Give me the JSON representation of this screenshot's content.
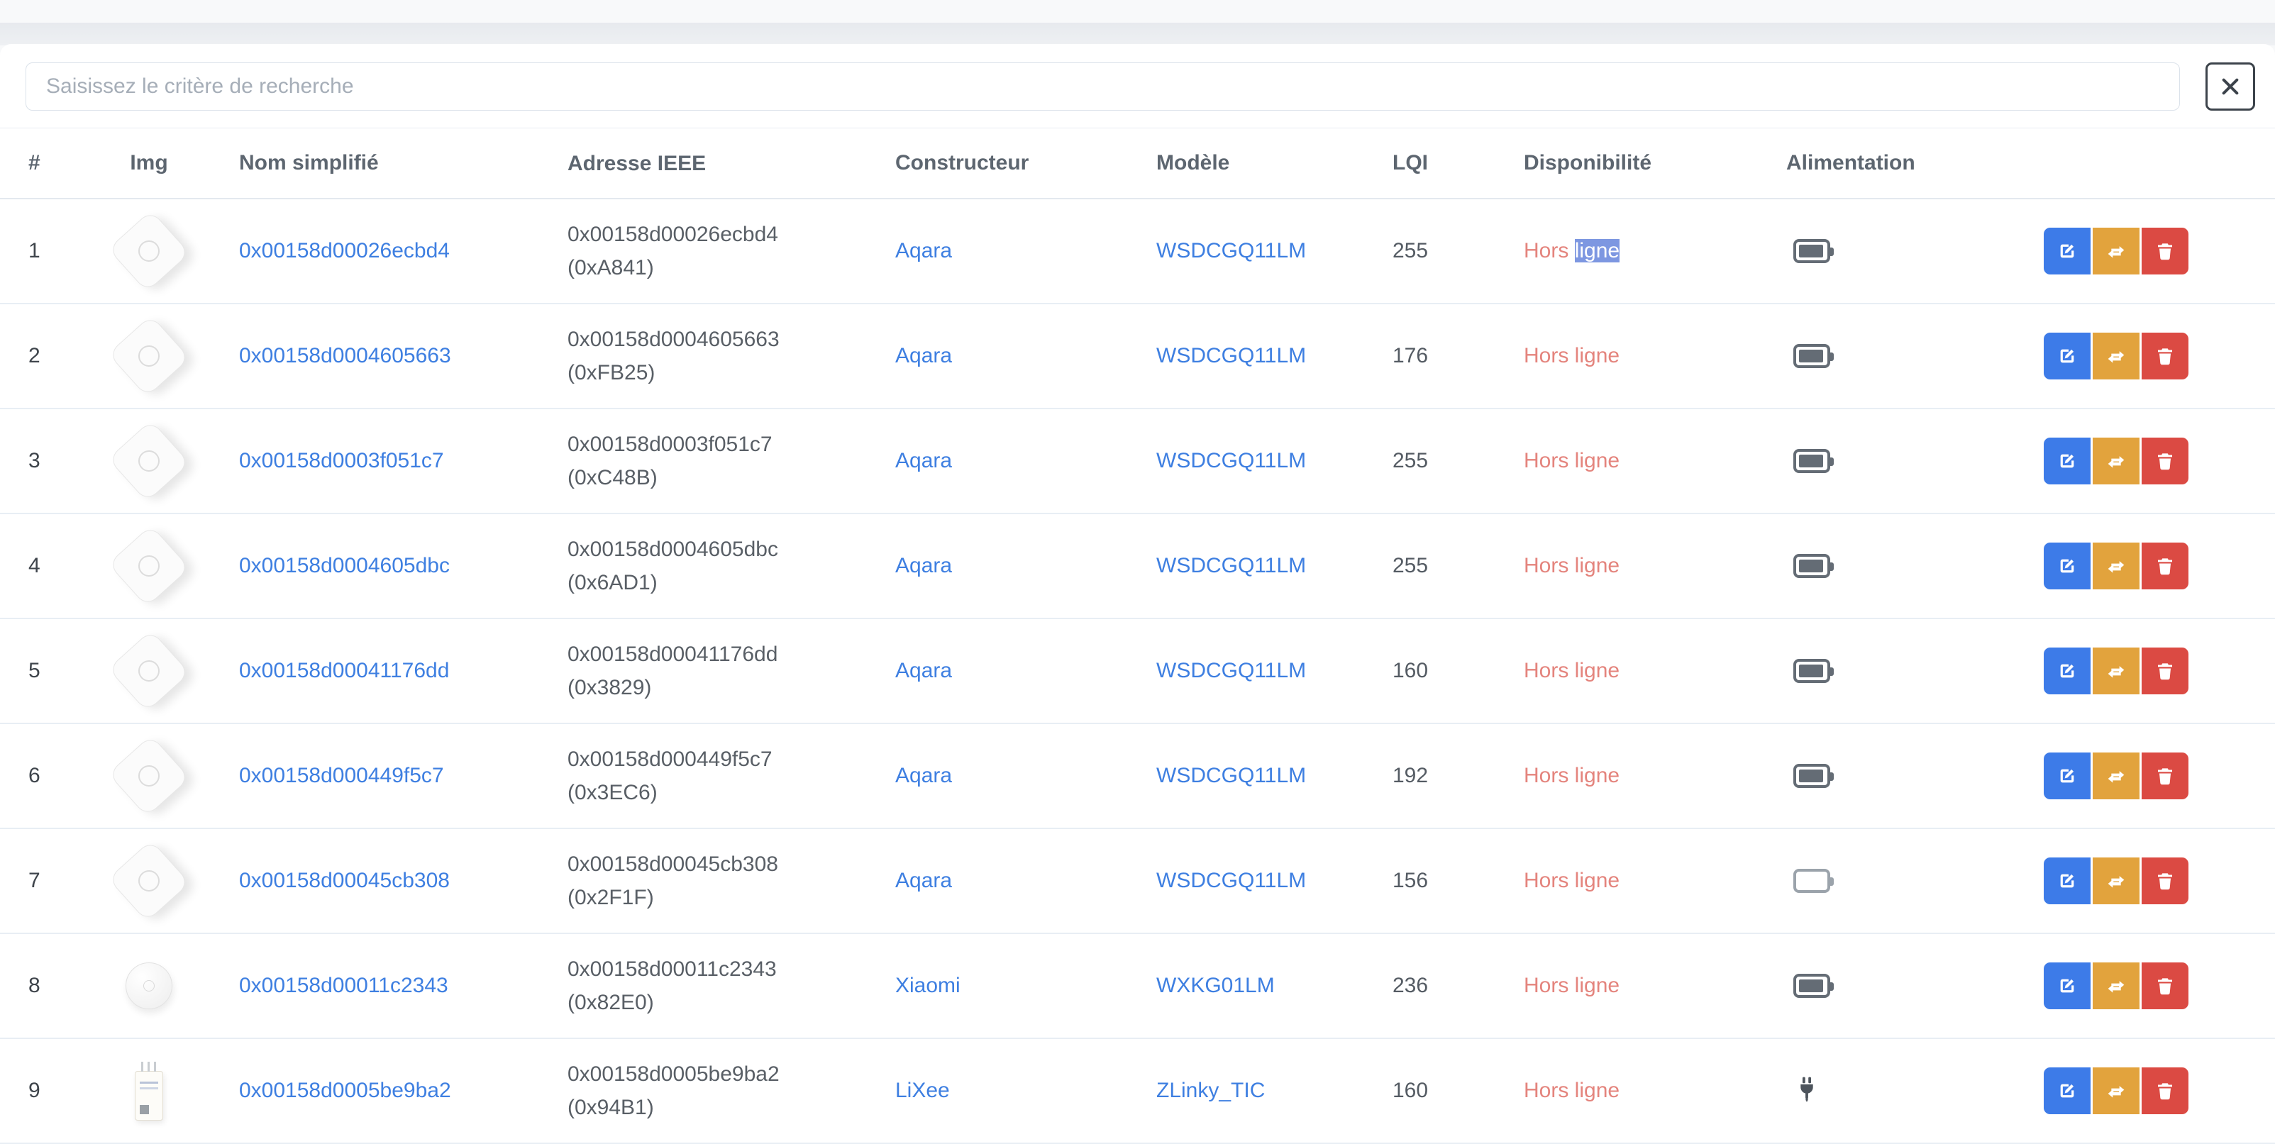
{
  "search": {
    "placeholder": "Saisissez le critère de recherche",
    "clear_icon": "x-icon"
  },
  "table": {
    "columns": [
      "#",
      "Img",
      "Nom simplifié",
      "Adresse IEEE",
      "Constructeur",
      "Modèle",
      "LQI",
      "Disponibilité",
      "Alimentation"
    ]
  },
  "rows": [
    {
      "num": "1",
      "image": "aqara-sensor",
      "name": "0x00158d00026ecbd4",
      "ieee": "0x00158d00026ecbd4",
      "short_addr": "(0xA841)",
      "vendor": "Aqara",
      "model": "WSDCGQ11LM",
      "lqi": "255",
      "availability_prefix": "Hors ",
      "availability_selected": "ligne",
      "power": "battery-full"
    },
    {
      "num": "2",
      "image": "aqara-sensor",
      "name": "0x00158d0004605663",
      "ieee": "0x00158d0004605663",
      "short_addr": "(0xFB25)",
      "vendor": "Aqara",
      "model": "WSDCGQ11LM",
      "lqi": "176",
      "availability": "Hors ligne",
      "power": "battery-full"
    },
    {
      "num": "3",
      "image": "aqara-sensor",
      "name": "0x00158d0003f051c7",
      "ieee": "0x00158d0003f051c7",
      "short_addr": "(0xC48B)",
      "vendor": "Aqara",
      "model": "WSDCGQ11LM",
      "lqi": "255",
      "availability": "Hors ligne",
      "power": "battery-full"
    },
    {
      "num": "4",
      "image": "aqara-sensor",
      "name": "0x00158d0004605dbc",
      "ieee": "0x00158d0004605dbc",
      "short_addr": "(0x6AD1)",
      "vendor": "Aqara",
      "model": "WSDCGQ11LM",
      "lqi": "255",
      "availability": "Hors ligne",
      "power": "battery-full"
    },
    {
      "num": "5",
      "image": "aqara-sensor",
      "name": "0x00158d00041176dd",
      "ieee": "0x00158d00041176dd",
      "short_addr": "(0x3829)",
      "vendor": "Aqara",
      "model": "WSDCGQ11LM",
      "lqi": "160",
      "availability": "Hors ligne",
      "power": "battery-full"
    },
    {
      "num": "6",
      "image": "aqara-sensor",
      "name": "0x00158d000449f5c7",
      "ieee": "0x00158d000449f5c7",
      "short_addr": "(0x3EC6)",
      "vendor": "Aqara",
      "model": "WSDCGQ11LM",
      "lqi": "192",
      "availability": "Hors ligne",
      "power": "battery-full"
    },
    {
      "num": "7",
      "image": "aqara-sensor",
      "name": "0x00158d00045cb308",
      "ieee": "0x00158d00045cb308",
      "short_addr": "(0x2F1F)",
      "vendor": "Aqara",
      "model": "WSDCGQ11LM",
      "lqi": "156",
      "availability": "Hors ligne",
      "power": "battery-empty"
    },
    {
      "num": "8",
      "image": "xiaomi-button",
      "name": "0x00158d00011c2343",
      "ieee": "0x00158d00011c2343",
      "short_addr": "(0x82E0)",
      "vendor": "Xiaomi",
      "model": "WXKG01LM",
      "lqi": "236",
      "availability": "Hors ligne",
      "power": "battery-full"
    },
    {
      "num": "9",
      "image": "lixee-zlinky",
      "name": "0x00158d0005be9ba2",
      "ieee": "0x00158d0005be9ba2",
      "short_addr": "(0x94B1)",
      "vendor": "LiXee",
      "model": "ZLinky_TIC",
      "lqi": "160",
      "availability": "Hors ligne",
      "power": "plug"
    }
  ],
  "actions": {
    "edit": "edit-button",
    "refresh": "refresh-button",
    "delete": "delete-button"
  },
  "colors": {
    "link_blue": "#3e7fe1",
    "availability_offline": "#e4847d",
    "selection_highlight": "#7d97e1",
    "button_edit": "#3d7be8",
    "button_refresh": "#e2a33d",
    "button_delete": "#db4a43",
    "battery_full": "#646c75",
    "battery_empty": "#9ba3ab"
  }
}
